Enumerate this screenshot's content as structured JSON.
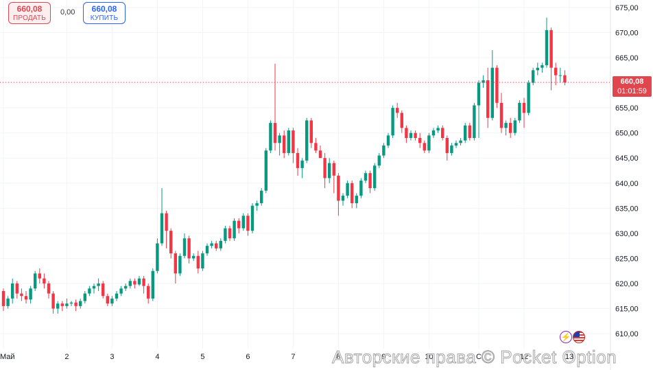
{
  "trade_panel": {
    "sell_price": "660,08",
    "sell_label": "ПРОДАТЬ",
    "spread": "0,00",
    "buy_price": "660,08",
    "buy_label": "КУПИТЬ"
  },
  "price_tag": {
    "price": "660,08",
    "countdown": "01:01:59"
  },
  "watermark": "Авторские права © Pocket Option",
  "colors": {
    "up": "#089981",
    "down": "#f23645",
    "grid": "#f0f3fa",
    "axis_text": "#131722"
  },
  "icons": [
    "lightning-icon",
    "us-flag-icon"
  ],
  "chart_data": {
    "type": "candlestick",
    "ylim": [
      607,
      676.5
    ],
    "y_ticks": [
      610,
      615,
      620,
      625,
      630,
      635,
      640,
      645,
      650,
      655,
      660,
      665,
      670,
      675
    ],
    "y_tick_labels": [
      "610,00",
      "615,00",
      "620,00",
      "625,00",
      "630,00",
      "635,00",
      "640,00",
      "645,00",
      "650,00",
      "655,00",
      "660,00",
      "665,00",
      "670,00",
      "675,00"
    ],
    "x_ticks": [
      {
        "label": "Май",
        "index": 0
      },
      {
        "label": "2",
        "index": 14
      },
      {
        "label": "3",
        "index": 24
      },
      {
        "label": "4",
        "index": 34
      },
      {
        "label": "5",
        "index": 44
      },
      {
        "label": "6",
        "index": 54
      },
      {
        "label": "7",
        "index": 64
      },
      {
        "label": "8",
        "index": 74
      },
      {
        "label": "9",
        "index": 84
      },
      {
        "label": "10",
        "index": 94
      },
      {
        "label": "С",
        "index": 105
      },
      {
        "label": "12",
        "index": 115
      },
      {
        "label": "13",
        "index": 125
      }
    ],
    "current_price": 660.08,
    "candles": [
      [
        618.5,
        619,
        614.5,
        615.5
      ],
      [
        615.5,
        617.5,
        615,
        617
      ],
      [
        617,
        621,
        616,
        620
      ],
      [
        620,
        620.5,
        617,
        618
      ],
      [
        618,
        619,
        616.5,
        617.5
      ],
      [
        617.5,
        618.5,
        616,
        616.8
      ],
      [
        616.8,
        619.5,
        616,
        619
      ],
      [
        619,
        622.5,
        618.5,
        622
      ],
      [
        622,
        623,
        620,
        621
      ],
      [
        621,
        622,
        619,
        620
      ],
      [
        620,
        620.5,
        617,
        618
      ],
      [
        618,
        618.5,
        614,
        615
      ],
      [
        615,
        616.5,
        614,
        616
      ],
      [
        616,
        616.5,
        614.5,
        615.5
      ],
      [
        615.5,
        617,
        615,
        616
      ],
      [
        616,
        616.5,
        615.5,
        616.2
      ],
      [
        616.2,
        616.8,
        614.5,
        615.5
      ],
      [
        615.5,
        617,
        615,
        616.5
      ],
      [
        616.5,
        618.5,
        616,
        618
      ],
      [
        618,
        619.5,
        617.5,
        619
      ],
      [
        619,
        620,
        618,
        619.5
      ],
      [
        619.5,
        621,
        618.5,
        620
      ],
      [
        620,
        620.5,
        617,
        617.5
      ],
      [
        617.5,
        618,
        615.5,
        616
      ],
      [
        616,
        617.5,
        615.5,
        617
      ],
      [
        617,
        618.5,
        616.5,
        618
      ],
      [
        618,
        619.5,
        617.5,
        619
      ],
      [
        619,
        620,
        618.5,
        619.5
      ],
      [
        619.5,
        621,
        619,
        620.5
      ],
      [
        620.5,
        621,
        619,
        619.8
      ],
      [
        619.8,
        621.5,
        619.5,
        621
      ],
      [
        621,
        621.5,
        618,
        619.5
      ],
      [
        619.5,
        620,
        616,
        617
      ],
      [
        617,
        623,
        616.5,
        622.5
      ],
      [
        622.5,
        629,
        622,
        628
      ],
      [
        628,
        639,
        627.5,
        634
      ],
      [
        634,
        634.5,
        627,
        630.5
      ],
      [
        630.5,
        631,
        625,
        626
      ],
      [
        626,
        626.5,
        620,
        622
      ],
      [
        622,
        626,
        621.5,
        625.5
      ],
      [
        625.5,
        630,
        625,
        629
      ],
      [
        629,
        629.5,
        624,
        625
      ],
      [
        625,
        626,
        624.5,
        625.5
      ],
      [
        625.5,
        626.5,
        622,
        623
      ],
      [
        623,
        626.5,
        622.5,
        626
      ],
      [
        626,
        628,
        625.5,
        627.5
      ],
      [
        627.5,
        628.5,
        627,
        628
      ],
      [
        628,
        628.5,
        626.5,
        627
      ],
      [
        627,
        629,
        626.5,
        628.5
      ],
      [
        628.5,
        631.5,
        628,
        631
      ],
      [
        631,
        631.5,
        628.5,
        629
      ],
      [
        629,
        633,
        628.5,
        632.5
      ],
      [
        632.5,
        633,
        630,
        631
      ],
      [
        631,
        634,
        630.5,
        633.5
      ],
      [
        633.5,
        634,
        629.5,
        630.5
      ],
      [
        630.5,
        636,
        630,
        635.5
      ],
      [
        635.5,
        636.5,
        634.5,
        636
      ],
      [
        636,
        639,
        635.5,
        638.5
      ],
      [
        638.5,
        647,
        638,
        646.5
      ],
      [
        646.5,
        652.5,
        646,
        652
      ],
      [
        652,
        663.8,
        646.5,
        648
      ],
      [
        648,
        650,
        645.5,
        649.5
      ],
      [
        649.5,
        650.5,
        645,
        646
      ],
      [
        646,
        651,
        645.5,
        650.5
      ],
      [
        650.5,
        651,
        644,
        646
      ],
      [
        646,
        647,
        641.5,
        643
      ],
      [
        643,
        645,
        641,
        644.5
      ],
      [
        644.5,
        653,
        644,
        652.5
      ],
      [
        652.5,
        653,
        647,
        648
      ],
      [
        648,
        649,
        646,
        646.5
      ],
      [
        646.5,
        647.5,
        645,
        645
      ],
      [
        645,
        646,
        639,
        641
      ],
      [
        641,
        645,
        640,
        644
      ],
      [
        644,
        644.5,
        638,
        641.5
      ],
      [
        641.5,
        642,
        633.5,
        636.5
      ],
      [
        636.5,
        638,
        635.5,
        637.5
      ],
      [
        637.5,
        640.5,
        637,
        640
      ],
      [
        640,
        640.5,
        635,
        636
      ],
      [
        636,
        638,
        635,
        637.5
      ],
      [
        637.5,
        641,
        637,
        640.5
      ],
      [
        640.5,
        642.5,
        640,
        642
      ],
      [
        642,
        642.5,
        638,
        639
      ],
      [
        639,
        644,
        638.5,
        643.5
      ],
      [
        643.5,
        646,
        643,
        645.5
      ],
      [
        645.5,
        648,
        645,
        647.5
      ],
      [
        647.5,
        650,
        647,
        649.5
      ],
      [
        649.5,
        655.5,
        649,
        655
      ],
      [
        655,
        656,
        653,
        654
      ],
      [
        654,
        654.5,
        650,
        651
      ],
      [
        651,
        651.5,
        648,
        649
      ],
      [
        649,
        650.5,
        648.5,
        650
      ],
      [
        650,
        650.5,
        648.5,
        649
      ],
      [
        649,
        650,
        647,
        648
      ],
      [
        648,
        648.5,
        646,
        646.5
      ],
      [
        646.5,
        650,
        646,
        649.5
      ],
      [
        649.5,
        651,
        649,
        650.5
      ],
      [
        650.5,
        651.5,
        650,
        651
      ],
      [
        651,
        651.5,
        648.5,
        649
      ],
      [
        649,
        649.5,
        644.5,
        646
      ],
      [
        646,
        648,
        645.5,
        647.5
      ],
      [
        647.5,
        648.5,
        647,
        648
      ],
      [
        648,
        649,
        647.5,
        648.5
      ],
      [
        648.5,
        652,
        648,
        651.5
      ],
      [
        651.5,
        652,
        648.5,
        649
      ],
      [
        649,
        656,
        648.5,
        655.5
      ],
      [
        655.5,
        660.5,
        649,
        660
      ],
      [
        660,
        661.5,
        659,
        660.5
      ],
      [
        660.5,
        663,
        651,
        653
      ],
      [
        653,
        666.5,
        652.5,
        663
      ],
      [
        663,
        663.5,
        655,
        656
      ],
      [
        656,
        658,
        650,
        651
      ],
      [
        651,
        652.5,
        649.5,
        652
      ],
      [
        652,
        653,
        649,
        650
      ],
      [
        650,
        653,
        649.5,
        652.5
      ],
      [
        652.5,
        656.5,
        652,
        656
      ],
      [
        656,
        657,
        651,
        654
      ],
      [
        654,
        660.5,
        653.5,
        660
      ],
      [
        660,
        663,
        659.5,
        662.5
      ],
      [
        662.5,
        664,
        661.5,
        663
      ],
      [
        663,
        664,
        662,
        663.5
      ],
      [
        663.5,
        673,
        663,
        670.5
      ],
      [
        670.5,
        671,
        658.5,
        663
      ],
      [
        663,
        664,
        659.5,
        661.5
      ],
      [
        661.5,
        663,
        660,
        661.5
      ],
      [
        661.5,
        662.5,
        659.5,
        660.08
      ]
    ]
  }
}
